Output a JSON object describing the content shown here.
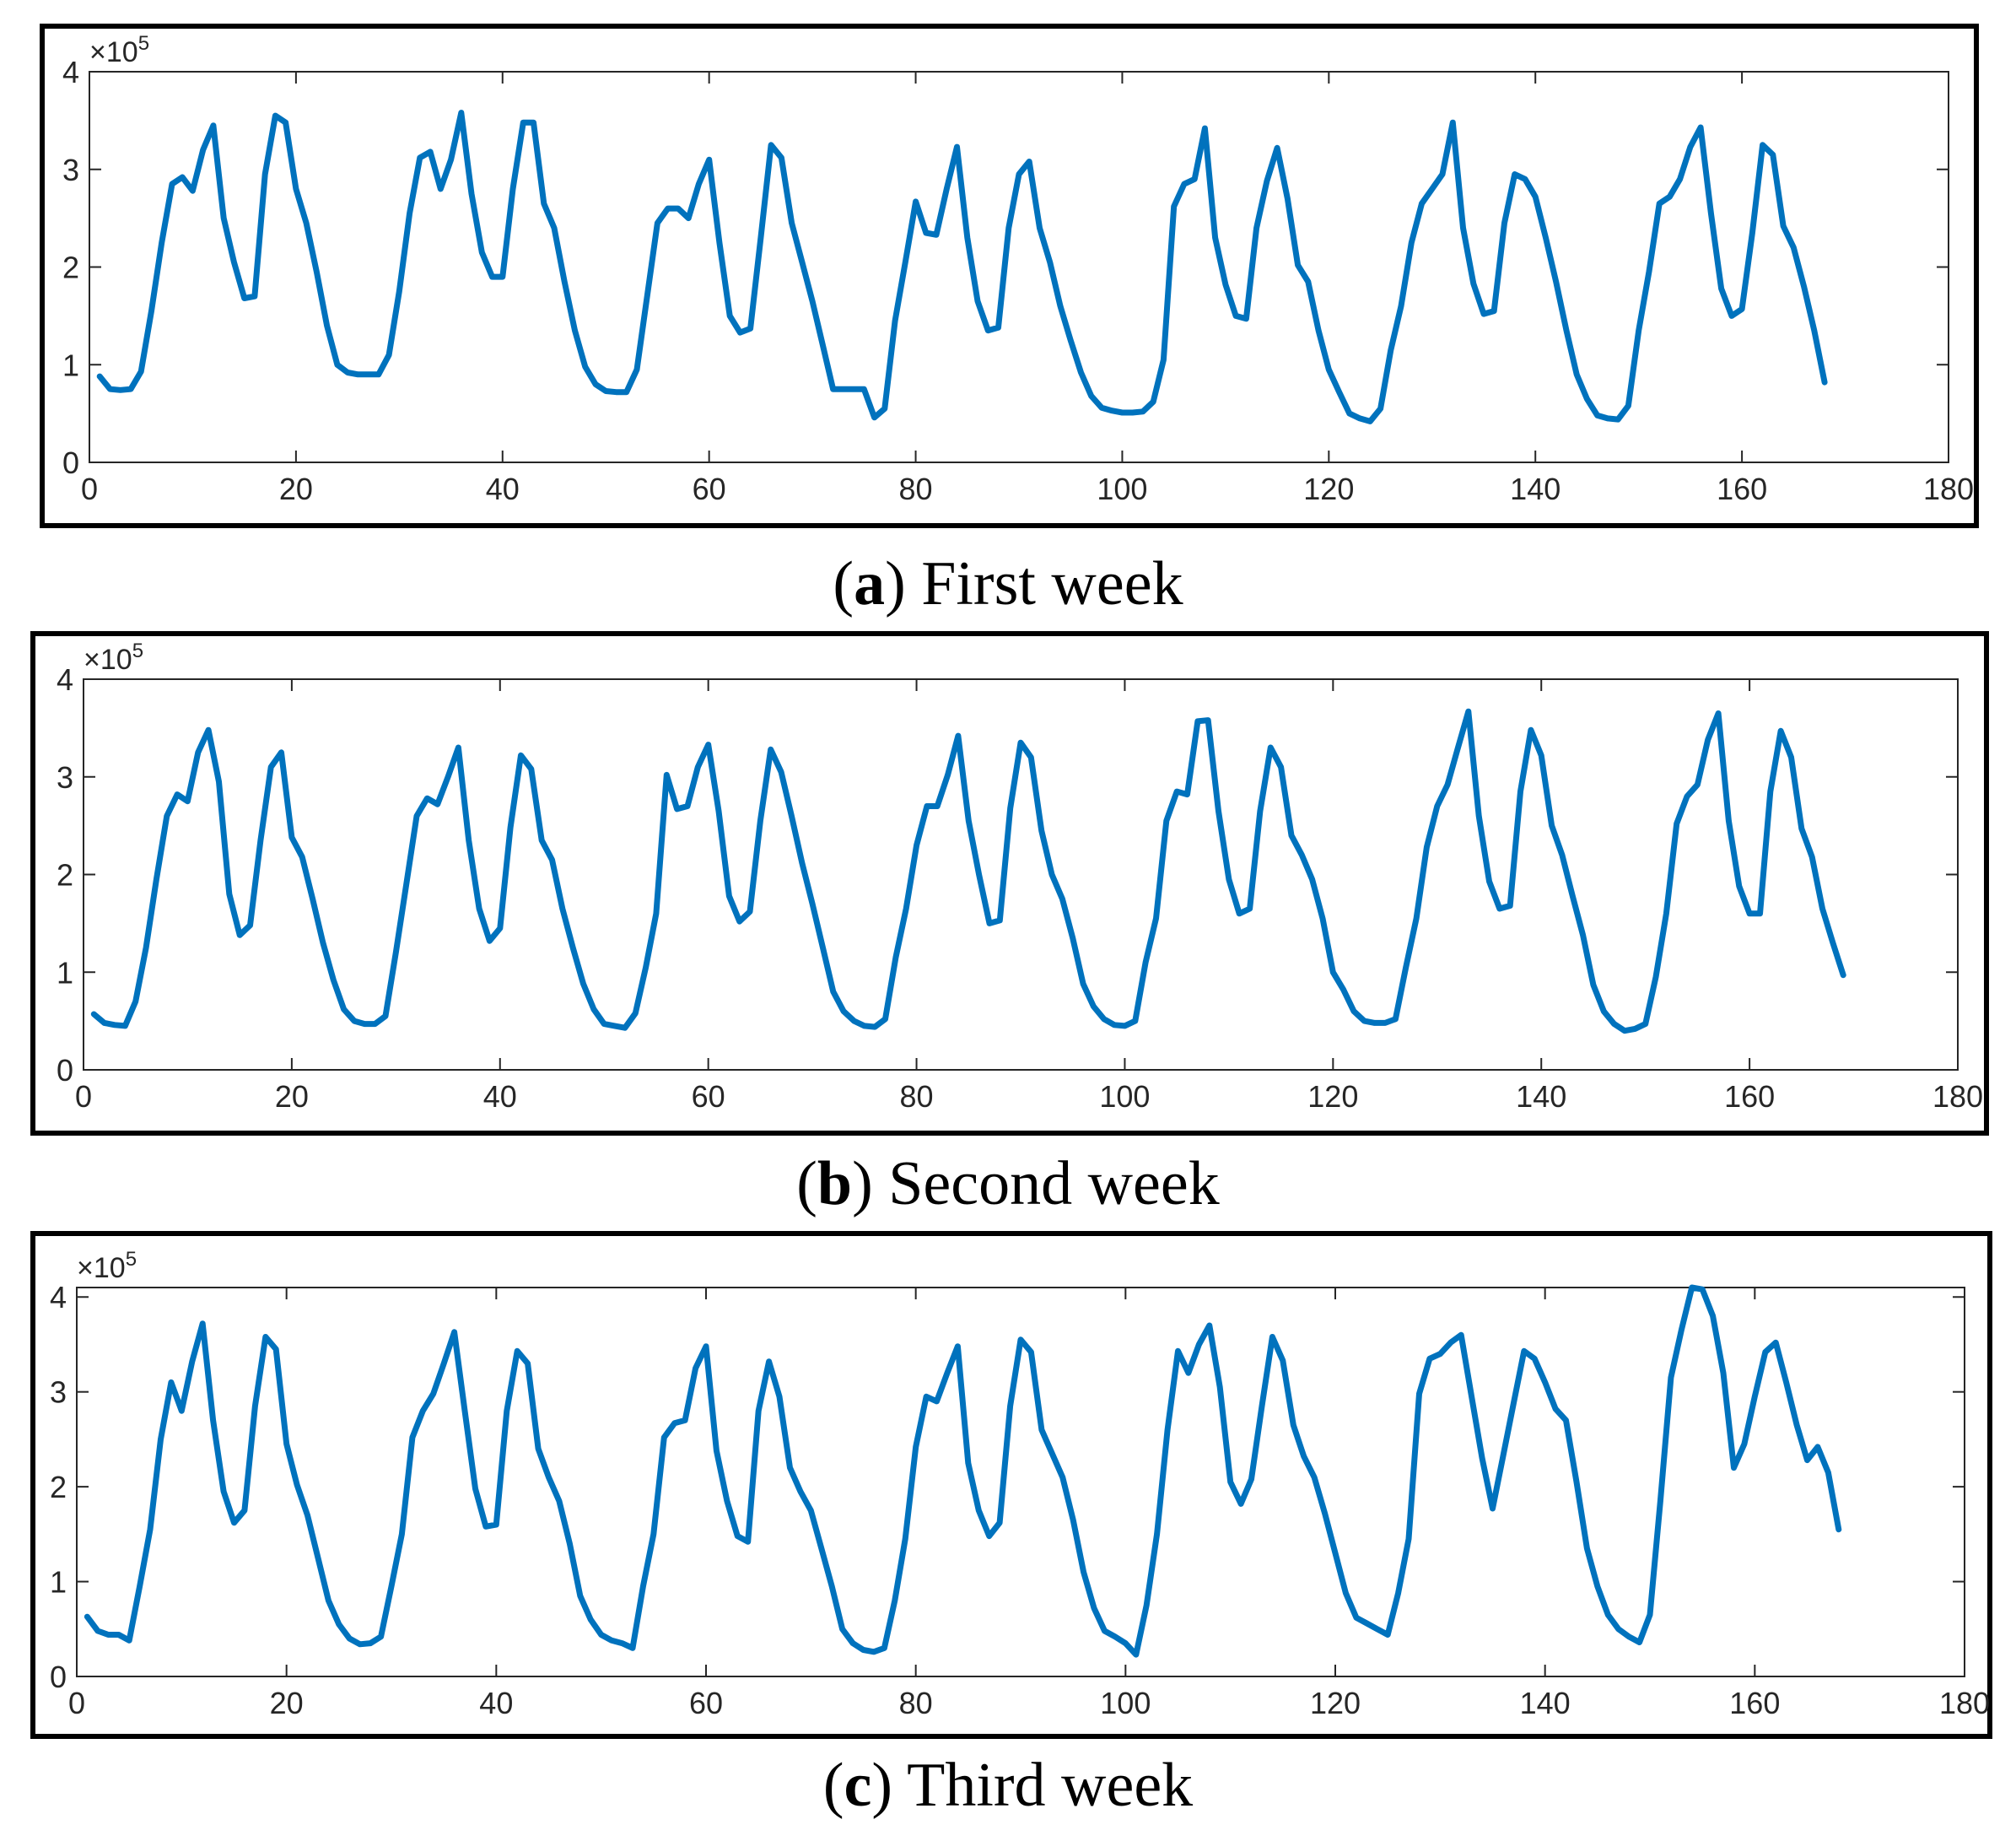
{
  "chart_data": [
    {
      "type": "line",
      "caption": {
        "letter": "a",
        "text": "First week"
      },
      "multiplier": {
        "base": "×10",
        "exponent": "5"
      },
      "xlim": [
        0,
        180
      ],
      "ylim": [
        0,
        4
      ],
      "xticks": [
        "0",
        "20",
        "40",
        "60",
        "80",
        "100",
        "120",
        "140",
        "160",
        "180"
      ],
      "yticks": [
        "0",
        "1",
        "2",
        "3",
        "4"
      ],
      "series": [
        {
          "name": "week1",
          "color": "#0072BD",
          "values": [
            0.88,
            0.75,
            0.74,
            0.75,
            0.93,
            1.55,
            2.25,
            2.85,
            2.92,
            2.78,
            3.2,
            3.45,
            2.5,
            2.05,
            1.68,
            1.7,
            2.95,
            3.55,
            3.48,
            2.8,
            2.45,
            1.95,
            1.4,
            1.0,
            0.92,
            0.9,
            0.9,
            0.9,
            1.1,
            1.75,
            2.55,
            3.12,
            3.18,
            2.8,
            3.1,
            3.58,
            2.75,
            2.15,
            1.9,
            1.9,
            2.8,
            3.48,
            3.48,
            2.65,
            2.4,
            1.85,
            1.35,
            0.98,
            0.8,
            0.73,
            0.72,
            0.72,
            0.95,
            1.7,
            2.45,
            2.6,
            2.6,
            2.5,
            2.85,
            3.1,
            2.25,
            1.5,
            1.33,
            1.37,
            2.3,
            3.25,
            3.12,
            2.45,
            2.05,
            1.65,
            1.2,
            0.75,
            0.75,
            0.75,
            0.75,
            0.46,
            0.55,
            1.45,
            2.05,
            2.67,
            2.35,
            2.33,
            2.8,
            3.23,
            2.3,
            1.65,
            1.35,
            1.38,
            2.4,
            2.95,
            3.08,
            2.4,
            2.05,
            1.6,
            1.25,
            0.92,
            0.68,
            0.56,
            0.53,
            0.51,
            0.51,
            0.52,
            0.62,
            1.05,
            2.62,
            2.85,
            2.9,
            3.42,
            2.3,
            1.82,
            1.5,
            1.47,
            2.4,
            2.88,
            3.22,
            2.7,
            2.02,
            1.85,
            1.35,
            0.95,
            0.72,
            0.5,
            0.45,
            0.42,
            0.55,
            1.15,
            1.6,
            2.25,
            2.65,
            2.8,
            2.95,
            3.48,
            2.4,
            1.83,
            1.52,
            1.55,
            2.45,
            2.95,
            2.9,
            2.72,
            2.3,
            1.85,
            1.35,
            0.9,
            0.65,
            0.48,
            0.45,
            0.44,
            0.58,
            1.35,
            1.95,
            2.65,
            2.72,
            2.9,
            3.23,
            3.43,
            2.55,
            1.78,
            1.5,
            1.57,
            2.35,
            3.25,
            3.15,
            2.42,
            2.2,
            1.8,
            1.35,
            0.82
          ]
        }
      ]
    },
    {
      "type": "line",
      "caption": {
        "letter": "b",
        "text": "Second week"
      },
      "multiplier": {
        "base": "×10",
        "exponent": "5"
      },
      "xlim": [
        0,
        180
      ],
      "ylim": [
        0,
        4
      ],
      "xticks": [
        "0",
        "20",
        "40",
        "60",
        "80",
        "100",
        "120",
        "140",
        "160",
        "180"
      ],
      "yticks": [
        "0",
        "1",
        "2",
        "3",
        "4"
      ],
      "series": [
        {
          "name": "week2",
          "color": "#0072BD",
          "values": [
            0.57,
            0.48,
            0.46,
            0.45,
            0.7,
            1.25,
            1.95,
            2.6,
            2.82,
            2.75,
            3.25,
            3.48,
            2.95,
            1.8,
            1.38,
            1.48,
            2.35,
            3.1,
            3.25,
            2.38,
            2.18,
            1.75,
            1.3,
            0.92,
            0.62,
            0.5,
            0.47,
            0.47,
            0.55,
            1.2,
            1.9,
            2.6,
            2.78,
            2.72,
            3.0,
            3.3,
            2.35,
            1.65,
            1.32,
            1.45,
            2.48,
            3.22,
            3.08,
            2.35,
            2.15,
            1.65,
            1.25,
            0.88,
            0.62,
            0.47,
            0.45,
            0.43,
            0.58,
            1.05,
            1.6,
            3.02,
            2.67,
            2.7,
            3.1,
            3.33,
            2.65,
            1.78,
            1.52,
            1.62,
            2.55,
            3.28,
            3.05,
            2.6,
            2.12,
            1.7,
            1.25,
            0.8,
            0.6,
            0.5,
            0.45,
            0.44,
            0.52,
            1.15,
            1.65,
            2.3,
            2.7,
            2.7,
            3.02,
            3.42,
            2.55,
            2.0,
            1.5,
            1.53,
            2.68,
            3.35,
            3.2,
            2.45,
            2.0,
            1.75,
            1.35,
            0.88,
            0.65,
            0.52,
            0.46,
            0.45,
            0.5,
            1.1,
            1.55,
            2.55,
            2.85,
            2.82,
            3.57,
            3.58,
            2.65,
            1.95,
            1.6,
            1.65,
            2.65,
            3.3,
            3.1,
            2.4,
            2.2,
            1.95,
            1.55,
            1.0,
            0.82,
            0.6,
            0.5,
            0.48,
            0.48,
            0.52,
            1.05,
            1.55,
            2.28,
            2.7,
            2.92,
            3.3,
            3.67,
            2.6,
            1.93,
            1.65,
            1.68,
            2.85,
            3.48,
            3.22,
            2.5,
            2.2,
            1.78,
            1.38,
            0.87,
            0.6,
            0.47,
            0.4,
            0.42,
            0.47,
            0.95,
            1.6,
            2.52,
            2.8,
            2.92,
            3.38,
            3.65,
            2.55,
            1.88,
            1.6,
            1.6,
            2.85,
            3.47,
            3.2,
            2.47,
            2.18,
            1.65,
            1.3,
            0.97
          ]
        }
      ]
    },
    {
      "type": "line",
      "caption": {
        "letter": "c",
        "text": "Third week"
      },
      "multiplier": {
        "base": "×10",
        "exponent": "5"
      },
      "xlim": [
        0,
        180
      ],
      "ylim": [
        0,
        4.1
      ],
      "xticks": [
        "0",
        "20",
        "40",
        "60",
        "80",
        "100",
        "120",
        "140",
        "160",
        "180"
      ],
      "yticks": [
        "0",
        "1",
        "2",
        "3",
        "4"
      ],
      "series": [
        {
          "name": "week3",
          "color": "#0072BD",
          "values": [
            0.63,
            0.48,
            0.44,
            0.44,
            0.38,
            0.95,
            1.55,
            2.5,
            3.1,
            2.8,
            3.32,
            3.72,
            2.7,
            1.95,
            1.62,
            1.75,
            2.85,
            3.58,
            3.45,
            2.45,
            2.02,
            1.7,
            1.25,
            0.8,
            0.55,
            0.4,
            0.34,
            0.35,
            0.42,
            0.95,
            1.5,
            2.52,
            2.8,
            2.98,
            3.3,
            3.63,
            2.8,
            1.98,
            1.58,
            1.6,
            2.8,
            3.43,
            3.3,
            2.4,
            2.1,
            1.85,
            1.4,
            0.85,
            0.6,
            0.44,
            0.38,
            0.35,
            0.3,
            0.95,
            1.5,
            2.52,
            2.67,
            2.7,
            3.25,
            3.48,
            2.38,
            1.85,
            1.48,
            1.42,
            2.8,
            3.32,
            2.95,
            2.2,
            1.95,
            1.75,
            1.35,
            0.95,
            0.5,
            0.35,
            0.28,
            0.26,
            0.3,
            0.8,
            1.45,
            2.42,
            2.95,
            2.9,
            3.2,
            3.48,
            2.25,
            1.75,
            1.48,
            1.62,
            2.85,
            3.55,
            3.42,
            2.6,
            2.35,
            2.1,
            1.65,
            1.1,
            0.72,
            0.48,
            0.42,
            0.35,
            0.23,
            0.75,
            1.5,
            2.6,
            3.43,
            3.2,
            3.5,
            3.7,
            3.05,
            2.05,
            1.82,
            2.08,
            2.85,
            3.58,
            3.33,
            2.65,
            2.32,
            2.1,
            1.72,
            1.3,
            0.88,
            0.62,
            0.56,
            0.5,
            0.44,
            0.88,
            1.45,
            2.98,
            3.35,
            3.4,
            3.52,
            3.6,
            2.95,
            2.3,
            1.77,
            2.32,
            2.88,
            3.43,
            3.35,
            3.1,
            2.82,
            2.7,
            2.05,
            1.35,
            0.95,
            0.65,
            0.5,
            0.42,
            0.36,
            0.65,
            1.85,
            3.15,
            3.65,
            4.1,
            4.08,
            3.8,
            3.2,
            2.2,
            2.45,
            2.95,
            3.42,
            3.52,
            3.1,
            2.65,
            2.28,
            2.42,
            2.15,
            1.55
          ]
        }
      ]
    }
  ]
}
